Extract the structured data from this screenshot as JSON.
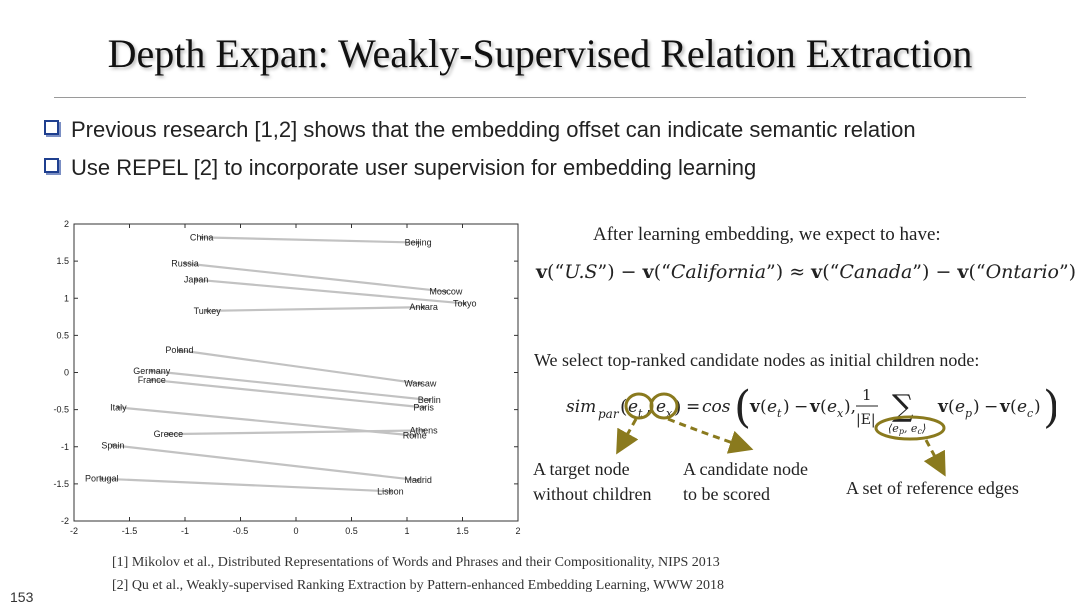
{
  "slide": {
    "title": "Depth Expan: Weakly-Supervised Relation Extraction",
    "bullets": [
      "Previous research [1,2] shows that the embedding offset can indicate semantic relation",
      "Use REPEL [2] to incorporate user supervision for embedding learning"
    ],
    "expect_text": "After learning embedding, we expect to have:",
    "equation": {
      "v": "v",
      "t1": "U.S",
      "t2": "California",
      "t3": "Canada",
      "t4": "Ontario"
    },
    "select_text": "We select top-ranked candidate nodes as initial children node:",
    "formula": {
      "sim": "sim",
      "par": "par",
      "et": "e",
      "et_sub": "t",
      "ex": "e",
      "ex_sub": "x",
      "cos": "cos",
      "v": "v",
      "frac_num": "1",
      "frac_den": "|E|",
      "sum_sub": "⟨e",
      "ep": "e",
      "ep_sub": "p",
      "ec": "e",
      "ec_sub": "c"
    },
    "labels": {
      "target_line1": "A target node",
      "target_line2": "without children",
      "candidate_line1": "A candidate node",
      "candidate_line2": "to be scored",
      "reference": "A set of reference edges"
    },
    "references": [
      "[1] Mikolov et al., Distributed Representations of Words and Phrases and their Compositionality, NIPS 2013",
      "[2] Qu et al., Weakly-supervised Ranking Extraction by Pattern-enhanced Embedding Learning, WWW 2018"
    ],
    "page_number": "153",
    "accent_color": "#1f3f8f",
    "annotation_color": "#8a7a1e"
  },
  "chart_data": {
    "type": "scatter",
    "title": "",
    "xlabel": "",
    "ylabel": "",
    "xlim": [
      -2,
      2
    ],
    "ylim": [
      -2,
      2
    ],
    "xticks": [
      "-2",
      "-1.5",
      "-1",
      "-0.5",
      "0",
      "0.5",
      "1",
      "1.5",
      "2"
    ],
    "yticks": [
      "2",
      "1.5",
      "1",
      "0.5",
      "0",
      "-0.5",
      "-1",
      "-1.5",
      "-2"
    ],
    "points": [
      {
        "label": "China",
        "x": -0.85,
        "y": 1.82
      },
      {
        "label": "Beijing",
        "x": 1.1,
        "y": 1.75
      },
      {
        "label": "Russia",
        "x": -1.0,
        "y": 1.47
      },
      {
        "label": "Japan",
        "x": -0.9,
        "y": 1.25
      },
      {
        "label": "Moscow",
        "x": 1.35,
        "y": 1.09
      },
      {
        "label": "Tokyo",
        "x": 1.52,
        "y": 0.93
      },
      {
        "label": "Ankara",
        "x": 1.15,
        "y": 0.88
      },
      {
        "label": "Turkey",
        "x": -0.8,
        "y": 0.83
      },
      {
        "label": "Poland",
        "x": -1.05,
        "y": 0.3
      },
      {
        "label": "Germany",
        "x": -1.3,
        "y": 0.02
      },
      {
        "label": "France",
        "x": -1.3,
        "y": -0.1
      },
      {
        "label": "Warsaw",
        "x": 1.12,
        "y": -0.15
      },
      {
        "label": "Berlin",
        "x": 1.2,
        "y": -0.37
      },
      {
        "label": "Paris",
        "x": 1.15,
        "y": -0.47
      },
      {
        "label": "Italy",
        "x": -1.6,
        "y": -0.47
      },
      {
        "label": "Greece",
        "x": -1.15,
        "y": -0.83
      },
      {
        "label": "Athens",
        "x": 1.15,
        "y": -0.78
      },
      {
        "label": "Rome",
        "x": 1.07,
        "y": -0.85
      },
      {
        "label": "Spain",
        "x": -1.65,
        "y": -0.98
      },
      {
        "label": "Madrid",
        "x": 1.1,
        "y": -1.45
      },
      {
        "label": "Portugal",
        "x": -1.75,
        "y": -1.43
      },
      {
        "label": "Lisbon",
        "x": 0.85,
        "y": -1.6
      }
    ],
    "pairs": [
      [
        "China",
        "Beijing"
      ],
      [
        "Russia",
        "Moscow"
      ],
      [
        "Japan",
        "Tokyo"
      ],
      [
        "Turkey",
        "Ankara"
      ],
      [
        "Poland",
        "Warsaw"
      ],
      [
        "Germany",
        "Berlin"
      ],
      [
        "France",
        "Paris"
      ],
      [
        "Italy",
        "Rome"
      ],
      [
        "Greece",
        "Athens"
      ],
      [
        "Spain",
        "Madrid"
      ],
      [
        "Portugal",
        "Lisbon"
      ]
    ]
  }
}
